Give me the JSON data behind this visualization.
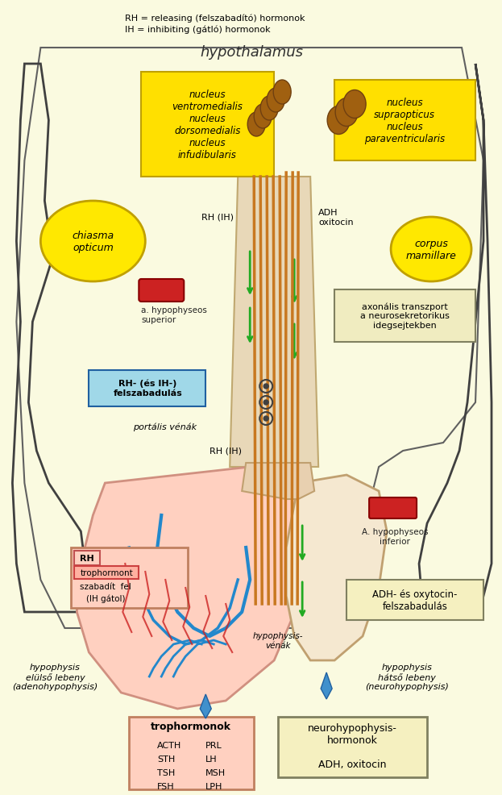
{
  "bg_color": "#FAFAE0",
  "title_hypothalamus": "hypothalamus",
  "legend_line1": "RH = releasing (felszabadító) hormonok",
  "legend_line2": "IH = inhibiting (gátló) hormonok",
  "box_left_label": "nucleus\nventromedialis\nnucleus\ndorsomedialis\nnucleus\ninfudibularis",
  "box_right_label": "nucleus\nsupraopticus\nnucleus\nparaventricularis",
  "chiasma_label": "chiasma\nopticum",
  "corpus_label": "corpus\nmamillare",
  "a_hyp_sup_label": "a. hypophyseos\nsuperior",
  "a_hyp_inf_label": "A. hypophyseos\ninferior",
  "rh_ih_label": "RH (IH)",
  "adh_label": "ADH\noxitocin",
  "axonal_label": "axonális transzport\na neurosekretorikus\nidegsejtekben",
  "rh_ih_label2": "RH (IH)",
  "rh_release_label": "RH- (és IH-)\nfelszabadulás",
  "portal_label": "portális vénák",
  "adh_release_label": "ADH- és oxytocin-\nfelszabadulás",
  "hyp_venák_label": "hypophysis-\nvénák",
  "hyp_elso_label": "hypophysis\nelülső lebeny\n(adenohypophysis)",
  "hyp_hatso_label": "hypophysis\nhátső lebeny\n(neurohypophysis)",
  "rh_box_label": "RH\ntrophormont\nszabadít fel\n(IH gátol)",
  "trophormonok_label": "trophormonok\n\nACTH   PRL\nSTH     LH\nTSH    MSH\nFSH    LPH",
  "neurohyp_label": "neurohypophysis-\nhormonok\n\nADH, oxitocin",
  "yellow_box_color": "#FFE000",
  "pink_box_color": "#FFB0A0",
  "light_yellow_box_color": "#F5F0C0",
  "blue_box_color": "#A0D8E8",
  "stem_color": "#C87820",
  "blood_color": "#CC2222",
  "vessel_color": "#2288CC",
  "green_arrow_color": "#22AA22",
  "nerve_bulb_color": "#A06010"
}
